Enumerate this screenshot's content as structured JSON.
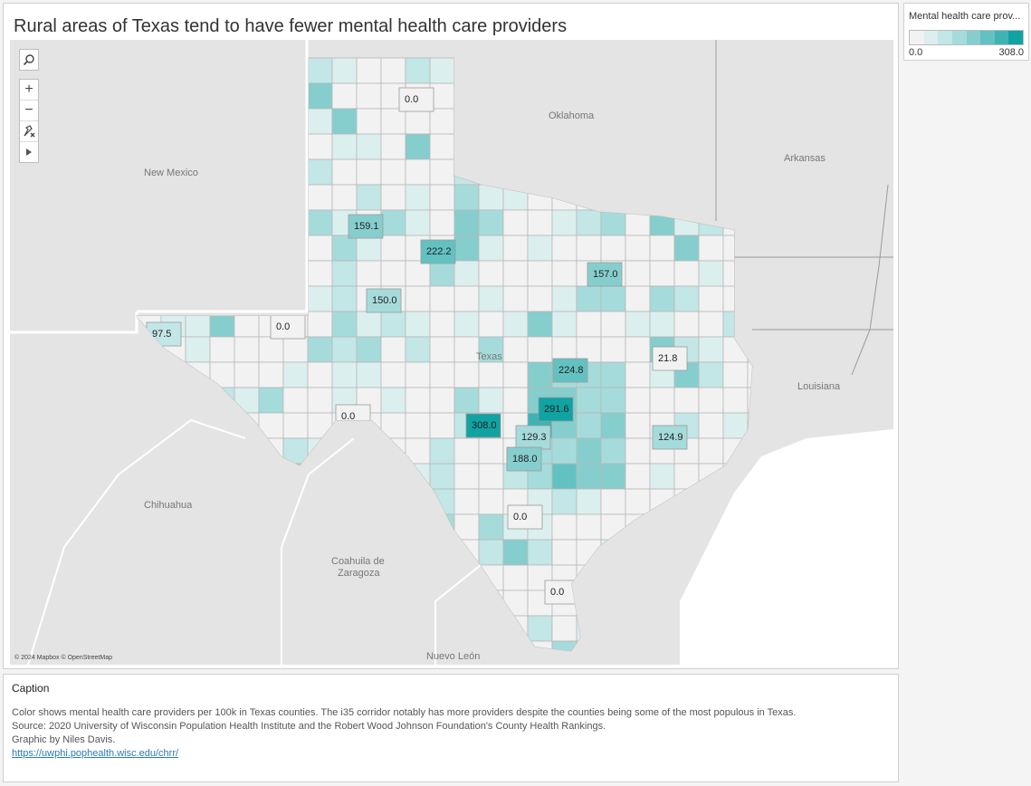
{
  "title": "Rural areas of Texas tend to have fewer mental health care providers",
  "legend": {
    "title": "Mental health care prov...",
    "min": "0.0",
    "max": "308.0",
    "ramp_colors": [
      "#f2f2f2",
      "#dcefef",
      "#c3e6e6",
      "#a6dbdb",
      "#86cece",
      "#63c1c1",
      "#3fb3b3",
      "#11a2a2"
    ]
  },
  "map": {
    "attribution": "© 2024 Mapbox © OpenStreetMap",
    "controls": [
      "search-icon",
      "zoom-in-icon",
      "zoom-out-icon",
      "pin-reset-icon",
      "play-icon"
    ],
    "region_labels": [
      "New Mexico",
      "Oklahoma",
      "Arkansas",
      "Louisiana",
      "Chihuahua",
      "Coahuila de",
      "Zaragoza",
      "Nuevo León",
      "Texas"
    ],
    "county_values": [
      {
        "label": "0.0",
        "value": 0.0
      },
      {
        "label": "159.1",
        "value": 159.1
      },
      {
        "label": "222.2",
        "value": 222.2
      },
      {
        "label": "157.0",
        "value": 157.0
      },
      {
        "label": "150.0",
        "value": 150.0
      },
      {
        "label": "97.5",
        "value": 97.5
      },
      {
        "label": "0.0",
        "value": 0.0
      },
      {
        "label": "21.8",
        "value": 21.8
      },
      {
        "label": "224.8",
        "value": 224.8
      },
      {
        "label": "291.6",
        "value": 291.6
      },
      {
        "label": "0.0",
        "value": 0.0
      },
      {
        "label": "308.0",
        "value": 308.0
      },
      {
        "label": "129.3",
        "value": 129.3
      },
      {
        "label": "124.9",
        "value": 124.9
      },
      {
        "label": "188.0",
        "value": 188.0
      },
      {
        "label": "0.0",
        "value": 0.0
      },
      {
        "label": "0.0",
        "value": 0.0
      }
    ]
  },
  "caption": {
    "title": "Caption",
    "line1": "Color shows mental health care providers per 100k in Texas counties. The i35 corridor notably has more providers despite the counties being some of the most populous in Texas.",
    "line2": "Source: 2020 University of Wisconsin Population Health Institute and the Robert Wood Johnson Foundation's County Health Rankings.",
    "line3": "Graphic by Niles Davis.",
    "link": "https://uwphi.pophealth.wisc.edu/chrr/"
  }
}
